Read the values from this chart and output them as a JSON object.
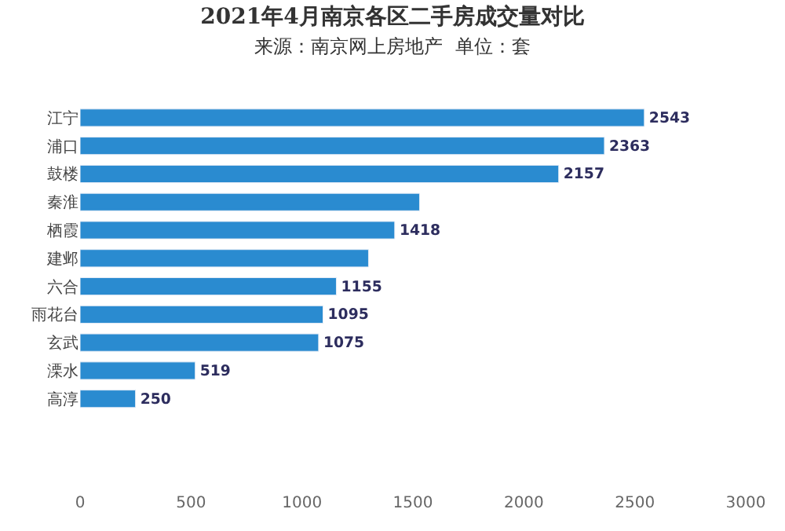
{
  "chart_data": {
    "type": "bar",
    "orientation": "horizontal",
    "title": "2021年4月南京各区二手房成交量对比",
    "subtitle": "来源：南京网上房地产  单位：套",
    "categories": [
      "江宁",
      "浦口",
      "鼓楼",
      "秦淮",
      "栖霞",
      "建邺",
      "六合",
      "雨花台",
      "玄武",
      "溧水",
      "高淳"
    ],
    "values": [
      2543,
      2363,
      2157,
      1530,
      1418,
      1300,
      1155,
      1095,
      1075,
      519,
      250
    ],
    "value_labels": [
      "2543",
      "2363",
      "2157",
      null,
      "1418",
      null,
      "1155",
      "1095",
      "1075",
      "519",
      "250"
    ],
    "color": "#2a8bd0",
    "xlim": [
      0,
      3000
    ],
    "xticks": [
      0,
      500,
      1000,
      1500,
      2000,
      2500,
      3000
    ],
    "legend": false
  }
}
